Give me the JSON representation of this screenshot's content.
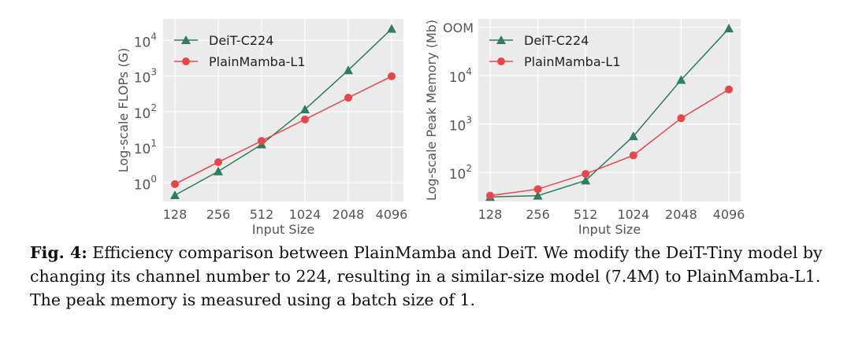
{
  "chart_data": [
    {
      "type": "line",
      "ylabel": "Log-scale FLOPs (G)",
      "xlabel": "Input Size",
      "yscale": "log",
      "ylim": [
        0.3,
        40000
      ],
      "categories": [
        "128",
        "256",
        "512",
        "1024",
        "2048",
        "4096"
      ],
      "yticks": [
        {
          "value": 1,
          "base": "10",
          "exp": "0"
        },
        {
          "value": 10,
          "base": "10",
          "exp": "1"
        },
        {
          "value": 100,
          "base": "10",
          "exp": "2"
        },
        {
          "value": 1000,
          "base": "10",
          "exp": "3"
        },
        {
          "value": 10000,
          "base": "10",
          "exp": "4"
        }
      ],
      "series": [
        {
          "name": "DeiT-C224",
          "marker": "triangle",
          "color": "#2e7d5b",
          "values": [
            0.45,
            2.1,
            12,
            115,
            1450,
            21000
          ]
        },
        {
          "name": "PlainMamba-L1",
          "marker": "circle",
          "color": "#e8474a",
          "values": [
            0.92,
            3.8,
            15,
            60,
            245,
            980
          ]
        }
      ],
      "legend": "top-left",
      "grid": true
    },
    {
      "type": "line",
      "ylabel": "Log-scale Peak Memory (Mb)",
      "xlabel": "Input Size",
      "yscale": "log",
      "ylim": [
        25,
        150000
      ],
      "categories": [
        "128",
        "256",
        "512",
        "1024",
        "2048",
        "4096"
      ],
      "yticks": [
        {
          "value": 100,
          "base": "10",
          "exp": "2"
        },
        {
          "value": 1000,
          "base": "10",
          "exp": "3"
        },
        {
          "value": 10000,
          "base": "10",
          "exp": "4"
        },
        {
          "value": 100000,
          "label": "OOM"
        }
      ],
      "series": [
        {
          "name": "DeiT-C224",
          "marker": "triangle",
          "color": "#2e7d5b",
          "values": [
            31,
            33,
            68,
            560,
            8200,
            95000
          ]
        },
        {
          "name": "PlainMamba-L1",
          "marker": "circle",
          "color": "#e8474a",
          "values": [
            33,
            45,
            93,
            225,
            1320,
            5200
          ]
        }
      ],
      "legend": "top-left",
      "grid": true
    }
  ],
  "caption": {
    "lead": "Fig. 4:",
    "text": " Efficiency comparison between PlainMamba and DeiT. We modify the DeiT-Tiny model by changing its channel number to 224, resulting in a similar-size model (7.4M) to PlainMamba-L1. The peak memory is measured using a batch size of 1."
  }
}
